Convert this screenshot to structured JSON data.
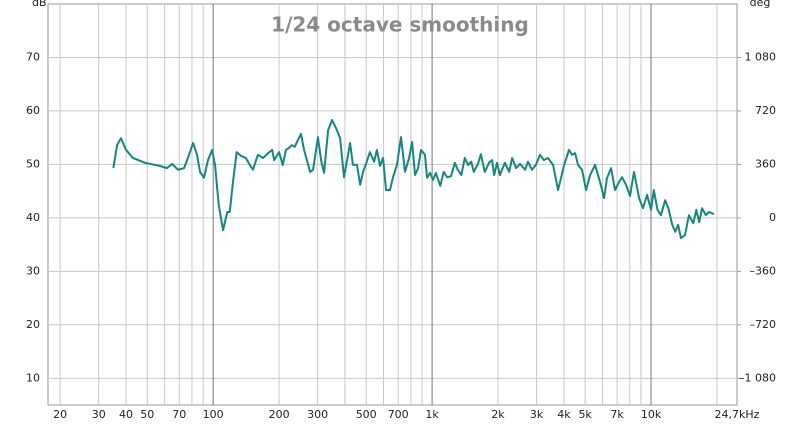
{
  "chart_data": {
    "type": "line",
    "title": "1/24 octave smoothing",
    "y_label": "dB",
    "y2_label": "deg",
    "log_x": true,
    "xlim": [
      17.6,
      24700
    ],
    "ylim": [
      5,
      80
    ],
    "y2lim": [
      -1260,
      1440
    ],
    "xticks": [
      20,
      30,
      40,
      50,
      70,
      100,
      200,
      300,
      500,
      700,
      {
        "value": 1000,
        "label": "1k"
      },
      {
        "value": 2000,
        "label": "2k"
      },
      {
        "value": 3000,
        "label": "3k"
      },
      {
        "value": 4000,
        "label": "4k"
      },
      {
        "value": 5000,
        "label": "5k"
      },
      {
        "value": 7000,
        "label": "7k"
      },
      {
        "value": 10000,
        "label": "10k"
      },
      {
        "value": 24700,
        "label": "24,7kHz"
      }
    ],
    "xgrid": [
      20,
      30,
      40,
      50,
      60,
      70,
      80,
      90,
      100,
      200,
      300,
      400,
      500,
      600,
      700,
      800,
      900,
      1000,
      2000,
      3000,
      4000,
      5000,
      6000,
      7000,
      8000,
      9000,
      10000,
      20000
    ],
    "xgrid_major": [
      100,
      1000,
      10000
    ],
    "yticks": [
      10,
      20,
      30,
      40,
      50,
      60,
      70
    ],
    "y2ticks": [
      {
        "value": -1080,
        "label": "–1 080"
      },
      {
        "value": -720,
        "label": "–720"
      },
      {
        "value": -360,
        "label": "–360"
      },
      0,
      360,
      720,
      {
        "value": 1080,
        "label": "1 080"
      }
    ],
    "grid": true,
    "x": [
      35,
      36.4,
      37.9,
      40,
      43,
      48.8,
      57.2,
      61.5,
      64.9,
      69.1,
      73.6,
      76.7,
      80.9,
      84.4,
      87.1,
      90.8,
      94.7,
      98.8,
      102,
      106,
      111,
      116,
      119,
      123,
      128,
      134,
      141,
      147,
      152,
      160,
      169,
      178,
      186,
      190,
      200,
      208,
      215,
      222,
      229,
      236,
      244,
      252,
      260,
      268,
      277,
      286,
      301,
      311,
      321,
      335,
      349,
      364,
      380,
      396,
      409,
      422,
      435,
      454,
      469,
      484,
      499,
      520,
      543,
      560,
      578,
      597,
      616,
      642,
      663,
      691,
      721,
      752,
      785,
      810,
      836,
      863,
      890,
      928,
      948,
      978,
      1010,
      1040,
      1090,
      1130,
      1170,
      1220,
      1270,
      1310,
      1360,
      1410,
      1460,
      1510,
      1550,
      1620,
      1670,
      1740,
      1820,
      1880,
      1920,
      1980,
      2040,
      2150,
      2250,
      2320,
      2420,
      2520,
      2660,
      2740,
      2860,
      2980,
      3110,
      3240,
      3380,
      3570,
      3760,
      4010,
      4220,
      4360,
      4500,
      4640,
      4840,
      5050,
      5270,
      5550,
      5850,
      6100,
      6300,
      6570,
      6850,
      7140,
      7370,
      7690,
      8020,
      8360,
      8820,
      9190,
      9590,
      10000,
      10300,
      10700,
      11100,
      11600,
      12000,
      12500,
      12900,
      13300,
      13700,
      14300,
      14900,
      15600,
      16100,
      16600,
      17100,
      17800,
      18400,
      19400
    ],
    "series": [
      {
        "color": "#17877d",
        "values": [
          49.3,
          53.6,
          54.9,
          52.7,
          51.2,
          50.3,
          49.7,
          49.3,
          50.1,
          49.0,
          49.3,
          51.2,
          54.0,
          51.8,
          48.6,
          47.5,
          50.8,
          52.7,
          49.9,
          42.4,
          37.7,
          41.1,
          41.1,
          46.5,
          52.3,
          51.6,
          51.2,
          49.9,
          49.0,
          51.8,
          51.2,
          52.1,
          52.7,
          50.8,
          52.3,
          49.9,
          52.7,
          53.1,
          53.6,
          53.3,
          54.6,
          55.7,
          52.7,
          50.8,
          48.6,
          49.0,
          55.1,
          50.8,
          48.4,
          56.4,
          58.3,
          56.8,
          54.9,
          47.6,
          50.8,
          54.0,
          49.9,
          49.9,
          46.2,
          48.6,
          50.1,
          52.3,
          50.5,
          52.7,
          49.7,
          51.2,
          45.2,
          45.2,
          47.6,
          49.9,
          55.1,
          48.6,
          51.2,
          54.2,
          48.0,
          49.3,
          52.7,
          51.8,
          47.5,
          48.4,
          47.1,
          48.4,
          46.0,
          48.6,
          47.6,
          47.8,
          50.3,
          49.0,
          48.0,
          51.2,
          49.9,
          50.5,
          48.6,
          50.1,
          51.9,
          48.6,
          50.3,
          50.8,
          48.0,
          50.3,
          48.0,
          50.3,
          48.6,
          51.2,
          49.3,
          50.1,
          49.0,
          50.5,
          49.0,
          49.9,
          51.8,
          50.8,
          51.2,
          49.9,
          45.2,
          49.9,
          52.7,
          51.8,
          52.1,
          49.9,
          49.0,
          45.2,
          48.0,
          49.9,
          46.7,
          43.7,
          47.5,
          49.3,
          45.2,
          46.7,
          47.6,
          46.2,
          44.1,
          48.6,
          43.7,
          41.8,
          44.3,
          41.5,
          45.2,
          41.5,
          40.5,
          43.3,
          41.8,
          38.7,
          37.4,
          38.7,
          36.2,
          36.8,
          40.5,
          39.0,
          41.5,
          39.2,
          41.8,
          40.5,
          41.1,
          40.7
        ]
      }
    ]
  }
}
